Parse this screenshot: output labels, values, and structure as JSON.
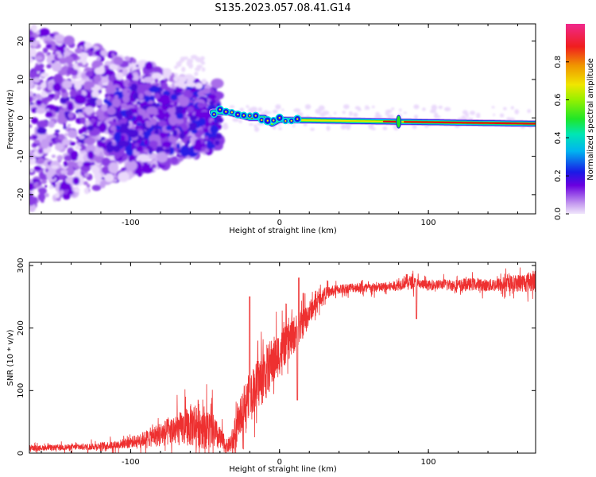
{
  "title": "S135.2023.057.08.41.G14",
  "colors": {
    "background": "#ffffff",
    "axes": "#000000",
    "snr_line": "#ee3030",
    "spectrum_low": "#dcc8f5",
    "spectrum_mid": "#6a00e0",
    "spectrum_ridge_edge": "#00e0e0",
    "spectrum_ridge_core": "#e01010"
  },
  "chart_data": [
    {
      "type": "heatmap",
      "xlabel": "Height of straight line (km)",
      "ylabel": "Frequency (Hz)",
      "xlim": [
        -168,
        172
      ],
      "ylim": [
        -25,
        24.5
      ],
      "xticks": [
        -100,
        0,
        100
      ],
      "xtick_labels": [
        "-100",
        "0",
        "100"
      ],
      "yticks": [
        -20,
        -10,
        0,
        10,
        20
      ],
      "ytick_labels": [
        "-20",
        "-10",
        "0",
        "10",
        "20"
      ],
      "description_ridge": [
        {
          "x": -35,
          "freq": 1.5
        },
        {
          "x": -20,
          "freq": 0.0
        },
        {
          "x": -10,
          "freq": 0.0
        },
        {
          "x": -5,
          "freq": -1.5
        },
        {
          "x": 0,
          "freq": -0.5
        },
        {
          "x": 80,
          "freq": -1.0
        },
        {
          "x": 170,
          "freq": -1.5
        }
      ],
      "colorbar": {
        "label": "Normalized spectral amplitude",
        "ticks": [
          0.0,
          0.2,
          0.4,
          0.6,
          0.8
        ],
        "tick_labels": [
          "0.0",
          "0.2",
          "0.4",
          "0.6",
          "0.8"
        ],
        "range": [
          0,
          1
        ]
      }
    },
    {
      "type": "line",
      "xlabel": "Height of straight line (km)",
      "ylabel": "SNR (10 * v/v)",
      "xlim": [
        -168,
        172
      ],
      "ylim": [
        0,
        305
      ],
      "xticks": [
        -100,
        0,
        100
      ],
      "xtick_labels": [
        "-100",
        "0",
        "100"
      ],
      "yticks": [
        0,
        100,
        200,
        300
      ],
      "ytick_labels": [
        "0",
        "100",
        "200",
        "300"
      ],
      "series": [
        {
          "name": "SNR",
          "x": [
            -168,
            -130,
            -110,
            -95,
            -80,
            -65,
            -55,
            -45,
            -35,
            -30,
            -25,
            -20,
            -15,
            -10,
            -5,
            0,
            5,
            10,
            15,
            20,
            25,
            30,
            40,
            50,
            60,
            70,
            80,
            85,
            90,
            95,
            100,
            110,
            120,
            130,
            140,
            150,
            160,
            172
          ],
          "y": [
            8,
            10,
            13,
            20,
            30,
            40,
            48,
            35,
            10,
            25,
            70,
            95,
            110,
            125,
            145,
            160,
            175,
            190,
            205,
            225,
            240,
            255,
            262,
            265,
            264,
            265,
            268,
            275,
            272,
            270,
            268,
            270,
            268,
            270,
            268,
            270,
            272,
            275
          ],
          "spread": [
            4,
            5,
            7,
            10,
            20,
            28,
            40,
            30,
            10,
            25,
            30,
            35,
            40,
            45,
            40,
            35,
            30,
            30,
            25,
            20,
            12,
            10,
            8,
            8,
            8,
            8,
            8,
            12,
            10,
            8,
            8,
            8,
            10,
            10,
            10,
            12,
            14,
            18
          ]
        }
      ],
      "annotations": [
        {
          "x": -20,
          "y": 250
        },
        {
          "x": 13,
          "y": 280
        },
        {
          "x": 12,
          "y": 85
        },
        {
          "x": 92,
          "y": 215
        }
      ]
    }
  ]
}
